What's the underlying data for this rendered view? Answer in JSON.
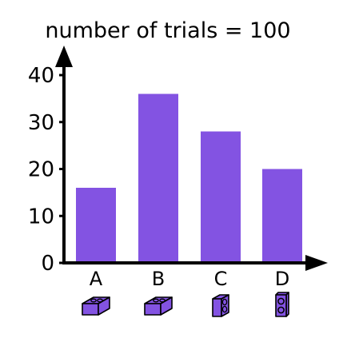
{
  "chart_data": {
    "type": "bar",
    "title": "number of trials = 100",
    "categories": [
      "A",
      "B",
      "C",
      "D"
    ],
    "values": [
      16,
      36,
      28,
      20
    ],
    "ylim": [
      0,
      40
    ],
    "yticks": [
      "0",
      "10",
      "20",
      "30",
      "40"
    ],
    "ytick_values": [
      0,
      10,
      20,
      30,
      40
    ],
    "xlabel": "",
    "ylabel": "",
    "grid": false,
    "bar_color": "#8353e2",
    "axis_color": "#000000",
    "category_icons": [
      "brick-2x2-icon",
      "brick-2x2-icon",
      "brick-1x2-tall-icon",
      "brick-1x2-standing-icon"
    ]
  }
}
